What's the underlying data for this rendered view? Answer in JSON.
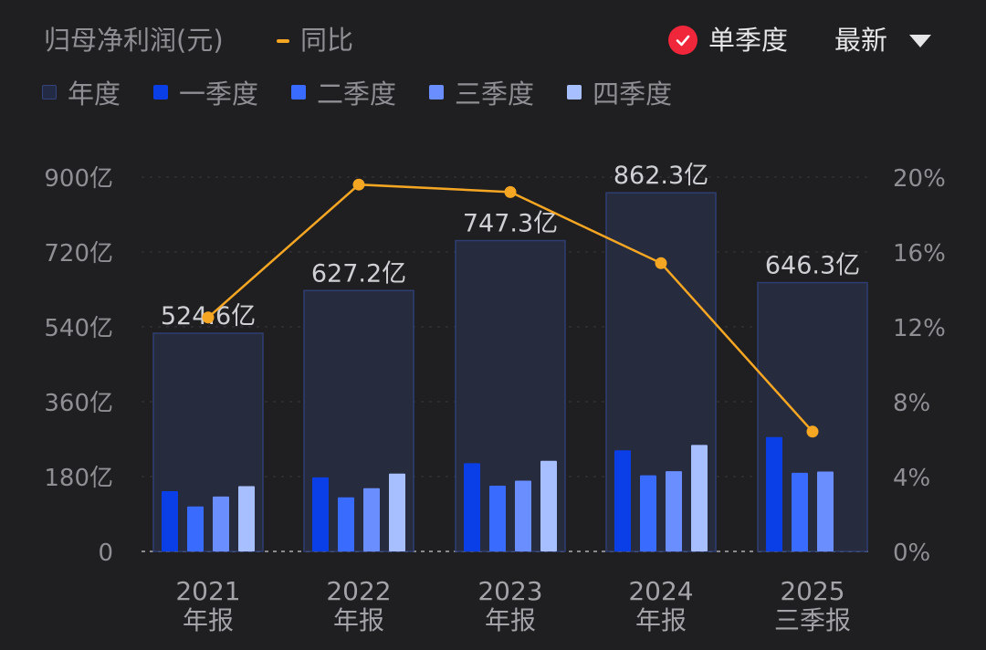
{
  "header": {
    "title": "归母净利润(元)",
    "yoy_legend": "同比",
    "toggle_label": "单季度",
    "sort_label": "最新"
  },
  "legend": [
    {
      "label": "年度",
      "color": "#2b3a66"
    },
    {
      "label": "一季度",
      "color": "#0a3ee6"
    },
    {
      "label": "二季度",
      "color": "#3a6bff"
    },
    {
      "label": "三季度",
      "color": "#6b8eff"
    },
    {
      "label": "四季度",
      "color": "#a8bfff"
    }
  ],
  "colors": {
    "annual_fill": "#262b3e",
    "annual_stroke": "#2f3e72",
    "q1": "#0a3ee6",
    "q2": "#3a6bff",
    "q3": "#6b8eff",
    "q4": "#a8bfff",
    "yoy_line": "#f5a623"
  },
  "chart_data": {
    "type": "bar",
    "categories": [
      {
        "year": "2021",
        "period": "年报"
      },
      {
        "year": "2022",
        "period": "年报"
      },
      {
        "year": "2023",
        "period": "年报"
      },
      {
        "year": "2024",
        "period": "年报"
      },
      {
        "year": "2025",
        "period": "三季报"
      }
    ],
    "left_axis": {
      "ticks": [
        "0",
        "180亿",
        "360亿",
        "540亿",
        "720亿",
        "900亿"
      ],
      "ylim": [
        0,
        900
      ],
      "unit": "亿"
    },
    "right_axis": {
      "ticks": [
        "0%",
        "4%",
        "8%",
        "12%",
        "16%",
        "20%"
      ],
      "ylim": [
        0,
        20
      ]
    },
    "annual": {
      "name": "年度",
      "values": [
        524.6,
        627.2,
        747.3,
        862.3,
        646.3
      ],
      "labels": [
        "524.6亿",
        "627.2亿",
        "747.3亿",
        "862.3亿",
        "646.3亿"
      ]
    },
    "series": [
      {
        "name": "一季度",
        "values": [
          145,
          178,
          212,
          243,
          275
        ]
      },
      {
        "name": "二季度",
        "values": [
          108,
          130,
          158,
          183,
          189
        ]
      },
      {
        "name": "三季度",
        "values": [
          132,
          152,
          170,
          193,
          192
        ]
      },
      {
        "name": "四季度",
        "values": [
          157,
          187,
          218,
          256,
          null
        ]
      }
    ],
    "yoy": {
      "name": "同比",
      "values": [
        12.5,
        19.6,
        19.2,
        15.4,
        6.4
      ]
    },
    "grid": true
  }
}
